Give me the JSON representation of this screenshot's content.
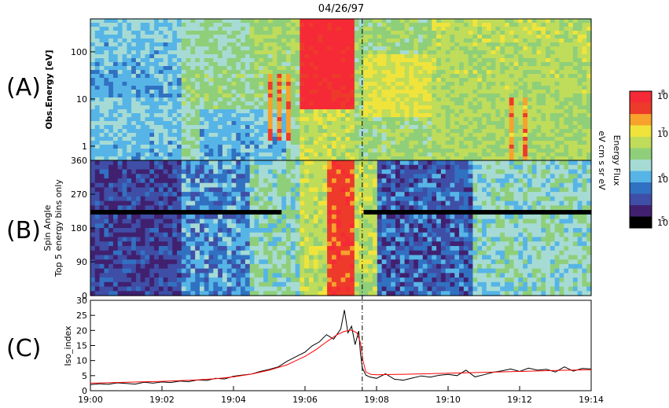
{
  "date_title": "04/26/97",
  "panel_labels": [
    "(A)",
    "(B)",
    "(C)"
  ],
  "colors": {
    "line_black": "#000000",
    "line_red": "#ff0000",
    "event_line": "#000000"
  },
  "colorbar": {
    "title": "Energy Flux",
    "units": "eV cm  s  sr eV",
    "tick_labels": [
      "10",
      "10",
      "10",
      "10"
    ],
    "tick_exponents": [
      "8",
      "7",
      "6",
      "5"
    ],
    "scale": "log",
    "range": [
      100000,
      100000000
    ],
    "colormap": [
      "#000000",
      "#40206f",
      "#3f4ea6",
      "#3171c2",
      "#56b5e6",
      "#a6dbd5",
      "#8fcf7a",
      "#bfdc5a",
      "#f0e43c",
      "#f7a22c",
      "#ee3a2a",
      "#f52a36"
    ]
  },
  "chart_data": [
    {
      "type": "heatmap",
      "panel": "A",
      "title": "",
      "xlabel": "",
      "ylabel": "Obs.Energy [eV]",
      "yscale": "log",
      "ylim": [
        0.5,
        500
      ],
      "xlim": [
        "19:00",
        "19:14"
      ],
      "y_ticks": [
        "1",
        "10",
        "100"
      ],
      "y_tick_values": [
        1,
        10,
        100
      ],
      "event_time": "19:07.6",
      "description_values": "energy-time spectrogram of log10 energy flux"
    },
    {
      "type": "heatmap",
      "panel": "B",
      "title": "",
      "xlabel": "",
      "ylabel": "Spin Angle",
      "ylabel2": "Top 5 energy bins only",
      "ylim": [
        0,
        360
      ],
      "xlim": [
        "19:00",
        "19:14"
      ],
      "y_ticks": [
        "0",
        "90",
        "180",
        "270",
        "360"
      ],
      "y_tick_values": [
        0,
        90,
        180,
        270,
        360
      ],
      "event_time": "19:07.6"
    },
    {
      "type": "line",
      "panel": "C",
      "title": "",
      "xlabel": "",
      "ylabel": "Iso_index",
      "ylim": [
        0,
        30
      ],
      "xlim": [
        "19:00",
        "19:14"
      ],
      "x_ticks": [
        "19:00",
        "19:02",
        "19:04",
        "19:06",
        "19:08",
        "19:10",
        "19:12",
        "19:14"
      ],
      "y_ticks": [
        "0",
        "5",
        "10",
        "15",
        "20",
        "25",
        "30"
      ],
      "y_tick_values": [
        0,
        5,
        10,
        15,
        20,
        25,
        30
      ],
      "event_time": "19:07.6",
      "series": [
        {
          "color": "#000000",
          "x_minutes": [
            0.0,
            0.25,
            0.5,
            0.75,
            1.0,
            1.25,
            1.5,
            1.75,
            2.0,
            2.25,
            2.5,
            2.75,
            3.0,
            3.25,
            3.5,
            3.75,
            4.0,
            4.25,
            4.5,
            4.75,
            5.0,
            5.25,
            5.5,
            5.75,
            6.0,
            6.2,
            6.4,
            6.6,
            6.8,
            7.0,
            7.1,
            7.2,
            7.3,
            7.4,
            7.5,
            7.55,
            7.6,
            7.7,
            7.8,
            8.0,
            8.25,
            8.5,
            8.75,
            9.0,
            9.25,
            9.5,
            9.75,
            10.0,
            10.25,
            10.5,
            10.75,
            11.0,
            11.25,
            11.5,
            11.75,
            12.0,
            12.25,
            12.5,
            12.75,
            13.0,
            13.25,
            13.5,
            13.75,
            14.0
          ],
          "values": [
            2.0,
            2.3,
            2.1,
            2.6,
            2.4,
            2.2,
            2.8,
            2.5,
            2.9,
            2.7,
            3.2,
            3.0,
            3.6,
            3.4,
            4.1,
            3.9,
            4.8,
            5.2,
            5.5,
            6.4,
            7.1,
            7.9,
            9.8,
            11.3,
            12.8,
            14.9,
            16.2,
            18.6,
            17.1,
            20.5,
            26.8,
            19.2,
            21.4,
            15.3,
            19.8,
            12.4,
            7.6,
            5.2,
            4.6,
            4.1,
            5.6,
            3.8,
            3.5,
            4.2,
            4.9,
            4.5,
            5.1,
            5.4,
            5.0,
            6.8,
            4.6,
            5.3,
            6.1,
            6.6,
            7.2,
            6.4,
            7.5,
            6.8,
            7.1,
            6.2,
            7.9,
            6.5,
            7.4,
            7.2
          ]
        },
        {
          "color": "#ff0000",
          "x_minutes": [
            0.0,
            1.0,
            2.0,
            3.0,
            3.5,
            4.0,
            4.5,
            5.0,
            5.5,
            6.0,
            6.3,
            6.6,
            6.9,
            7.1,
            7.3,
            7.45,
            7.55,
            7.62,
            7.7,
            7.85,
            8.0,
            9.0,
            10.0,
            11.0,
            12.0,
            13.0,
            14.0
          ],
          "values": [
            2.5,
            2.8,
            3.1,
            3.6,
            4.0,
            4.6,
            5.5,
            6.8,
            8.6,
            11.4,
            13.6,
            16.2,
            18.6,
            19.7,
            20.1,
            19.2,
            16.0,
            10.0,
            6.2,
            5.4,
            5.3,
            5.5,
            5.8,
            6.1,
            6.4,
            6.7,
            7.0
          ]
        }
      ]
    }
  ]
}
